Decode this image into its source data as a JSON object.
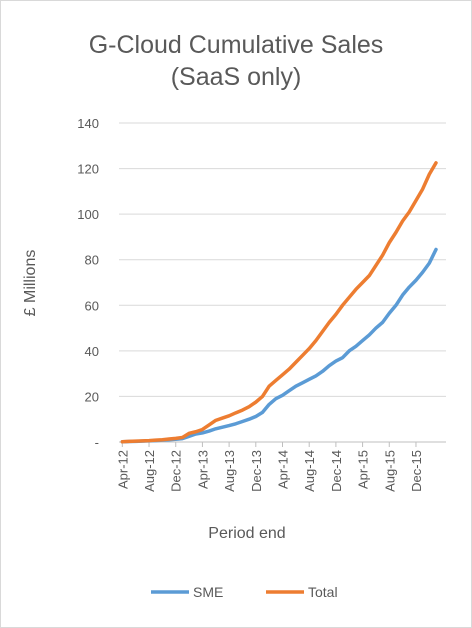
{
  "chart_data": {
    "type": "line",
    "title_line1": "G-Cloud Cumulative Sales",
    "title_line2": "(SaaS only)",
    "xlabel": "Period end",
    "ylabel": "£ Millions",
    "ylim": [
      0,
      140
    ],
    "y_ticks": [
      "-",
      "20",
      "40",
      "60",
      "80",
      "100",
      "120",
      "140"
    ],
    "categories": [
      "Apr-12",
      "May-12",
      "Jun-12",
      "Jul-12",
      "Aug-12",
      "Sep-12",
      "Oct-12",
      "Nov-12",
      "Dec-12",
      "Jan-13",
      "Feb-13",
      "Mar-13",
      "Apr-13",
      "May-13",
      "Jun-13",
      "Jul-13",
      "Aug-13",
      "Sep-13",
      "Oct-13",
      "Nov-13",
      "Dec-13",
      "Jan-14",
      "Feb-14",
      "Mar-14",
      "Apr-14",
      "May-14",
      "Jun-14",
      "Jul-14",
      "Aug-14",
      "Sep-14",
      "Oct-14",
      "Nov-14",
      "Dec-14",
      "Jan-15",
      "Feb-15",
      "Mar-15",
      "Apr-15",
      "May-15",
      "Jun-15",
      "Jul-15",
      "Aug-15",
      "Sep-15",
      "Oct-15",
      "Nov-15",
      "Dec-15",
      "Jan-16",
      "Feb-16",
      "Mar-16",
      "Apr-16"
    ],
    "x_tick_labels": [
      "Apr-12",
      "Aug-12",
      "Dec-12",
      "Apr-13",
      "Aug-13",
      "Dec-13",
      "Apr-14",
      "Aug-14",
      "Dec-14",
      "Apr-15",
      "Aug-15",
      "Dec-15"
    ],
    "grid": true,
    "legend_position": "bottom",
    "series": [
      {
        "name": "SME",
        "color": "#5b9bd5",
        "values": [
          0.1,
          0.2,
          0.3,
          0.4,
          0.5,
          0.6,
          0.8,
          1.0,
          1.2,
          1.5,
          2.5,
          3.5,
          4.0,
          4.8,
          5.8,
          6.5,
          7.2,
          8.0,
          9.0,
          10.0,
          11.2,
          13.0,
          16.5,
          19.0,
          20.5,
          22.5,
          24.5,
          26.0,
          27.5,
          29.0,
          31.0,
          33.5,
          35.5,
          37.0,
          40.0,
          42.0,
          44.5,
          47.0,
          50.0,
          52.5,
          56.5,
          60.0,
          64.5,
          68.0,
          71.0,
          74.5,
          78.5,
          84.5,
          null
        ]
      },
      {
        "name": "Total",
        "color": "#ed7d31",
        "values": [
          0.1,
          0.3,
          0.4,
          0.5,
          0.6,
          0.8,
          1.0,
          1.3,
          1.6,
          2.0,
          3.8,
          4.5,
          5.5,
          7.5,
          9.5,
          10.5,
          11.5,
          12.8,
          14.0,
          15.5,
          17.5,
          20.0,
          24.5,
          27.0,
          29.5,
          32.0,
          35.0,
          38.0,
          41.0,
          44.5,
          48.5,
          52.5,
          56.0,
          60.0,
          63.5,
          67.0,
          70.0,
          73.0,
          77.5,
          82.0,
          87.5,
          92.0,
          97.0,
          101.0,
          106.0,
          111.0,
          117.5,
          122.5,
          null
        ]
      }
    ]
  }
}
